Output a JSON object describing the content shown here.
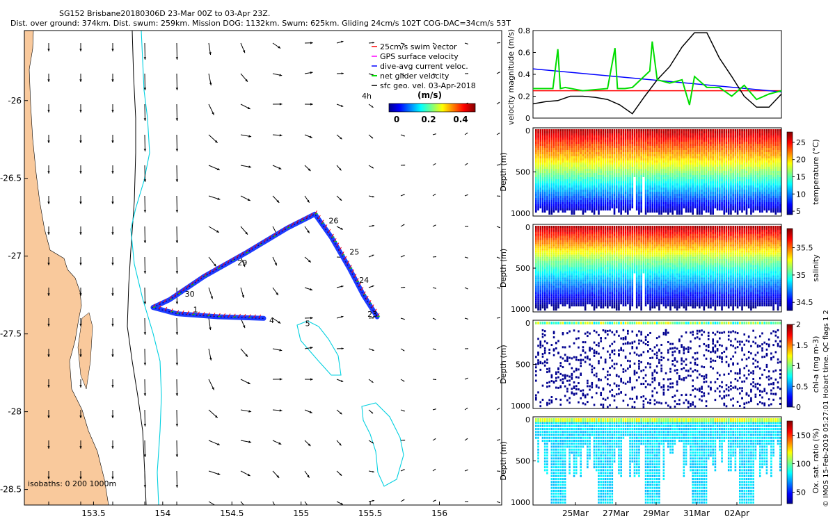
{
  "header": {
    "line1": "SG152 Brisbane20180306D 23-Mar 00Z to 03-Apr 23Z.",
    "line2": "Dist. over ground: 374km. Dist. swum: 259km. Mission DOG: 1132km. Swum: 625km. Gliding 24cm/s 102T COG-DAC=34cm/s 53T"
  },
  "side_label": "© IMOS 15-Feb-2019 05:27:01 Hobart time. QC flags 1  2",
  "colors": {
    "land": "#f9c99c",
    "swim_vector": "#ff0000",
    "gps_vel": "#ff00ff",
    "dac": "#0000ff",
    "net_vel": "#00dd00",
    "geo_vel": "#000000",
    "isobath_0": "#000000",
    "isobath_200": "#00d0e0",
    "track": "#1e3cff"
  },
  "chart_data": [
    {
      "id": "map",
      "type": "scatter",
      "title": "SG152 Brisbane20180306D 23-Mar 00Z to 03-Apr 23Z.",
      "xlim": [
        153.0,
        156.45
      ],
      "ylim": [
        -28.6,
        -25.55
      ],
      "xticks": [
        153.5,
        154,
        154.5,
        155,
        155.5,
        156
      ],
      "yticks": [
        -26,
        -26.5,
        -27,
        -27.5,
        -28,
        -28.5
      ],
      "legend": [
        "25cm/s swim vector",
        "GPS surface velocity",
        "dive-avg current veloc.",
        "net glider velocity",
        "sfc geo. vel. 03-Apr-2018"
      ],
      "speed_label": "4h",
      "colorbar": {
        "label": "(m/s)",
        "ticks": [
          "0",
          "0.2",
          "0.4"
        ]
      },
      "isobath_label": "isobaths: 0   200   1000m",
      "day_labels": [
        {
          "text": "23",
          "lon": 155.48,
          "lat": -27.39
        },
        {
          "text": "24",
          "lon": 155.42,
          "lat": -27.17
        },
        {
          "text": "25",
          "lon": 155.35,
          "lat": -26.99
        },
        {
          "text": "26",
          "lon": 155.2,
          "lat": -26.79
        },
        {
          "text": "29",
          "lon": 154.54,
          "lat": -27.06
        },
        {
          "text": "30",
          "lon": 154.16,
          "lat": -27.26
        },
        {
          "text": "1",
          "lon": 154.22,
          "lat": -27.36
        },
        {
          "text": "4",
          "lon": 154.77,
          "lat": -27.43
        },
        {
          "text": "5",
          "lon": 155.03,
          "lat": -27.45
        }
      ],
      "track": [
        [
          155.55,
          -27.39
        ],
        [
          155.45,
          -27.25
        ],
        [
          155.35,
          -27.08
        ],
        [
          155.22,
          -26.88
        ],
        [
          155.1,
          -26.73
        ],
        [
          154.9,
          -26.82
        ],
        [
          154.6,
          -26.98
        ],
        [
          154.3,
          -27.13
        ],
        [
          154.05,
          -27.28
        ],
        [
          153.93,
          -27.33
        ],
        [
          154.1,
          -27.37
        ],
        [
          154.4,
          -27.39
        ],
        [
          154.73,
          -27.4
        ]
      ]
    },
    {
      "id": "velocity",
      "type": "line",
      "ylabel": "velocity magnitude (m/s)",
      "ylim": [
        0,
        0.8
      ],
      "yticks": [
        "0",
        "0.2",
        "0.4",
        "0.6",
        "0.8"
      ],
      "series": [
        {
          "name": "red constant",
          "color": "#ff0000",
          "x": [
            0,
            1
          ],
          "values": [
            0.25,
            0.25
          ]
        },
        {
          "name": "blue trend",
          "color": "#0000ff",
          "x": [
            0,
            1
          ],
          "values": [
            0.45,
            0.24
          ]
        },
        {
          "name": "black",
          "color": "#000000",
          "x": [
            0,
            0.05,
            0.1,
            0.15,
            0.2,
            0.25,
            0.3,
            0.35,
            0.4,
            0.45,
            0.5,
            0.55,
            0.6,
            0.65,
            0.7,
            0.75,
            0.8,
            0.85,
            0.9,
            0.95,
            1
          ],
          "values": [
            0.13,
            0.15,
            0.16,
            0.2,
            0.2,
            0.19,
            0.17,
            0.12,
            0.04,
            0.2,
            0.35,
            0.47,
            0.65,
            0.78,
            0.78,
            0.55,
            0.38,
            0.2,
            0.1,
            0.1,
            0.22
          ]
        },
        {
          "name": "green",
          "color": "#00dd00",
          "x": [
            0,
            0.08,
            0.1,
            0.11,
            0.13,
            0.2,
            0.3,
            0.33,
            0.34,
            0.37,
            0.4,
            0.47,
            0.48,
            0.5,
            0.55,
            0.6,
            0.63,
            0.65,
            0.7,
            0.75,
            0.8,
            0.85,
            0.9,
            0.95,
            1
          ],
          "values": [
            0.27,
            0.27,
            0.63,
            0.27,
            0.28,
            0.25,
            0.27,
            0.64,
            0.27,
            0.27,
            0.28,
            0.43,
            0.7,
            0.35,
            0.32,
            0.35,
            0.12,
            0.38,
            0.28,
            0.28,
            0.2,
            0.3,
            0.17,
            0.22,
            0.25
          ]
        }
      ]
    },
    {
      "id": "temperature",
      "type": "heatmap",
      "ylabel": "Depth (m)",
      "yticks": [
        "0",
        "500",
        "1000"
      ],
      "colorbar": {
        "label": "temperature (°C)",
        "range": [
          4,
          28
        ],
        "ticks": [
          "5",
          "10",
          "15",
          "20",
          "25"
        ]
      }
    },
    {
      "id": "salinity",
      "type": "heatmap",
      "ylabel": "Depth (m)",
      "yticks": [
        "0",
        "500",
        "1000"
      ],
      "colorbar": {
        "label": "salinity",
        "range": [
          34.35,
          35.85
        ],
        "ticks": [
          "34.5",
          "35",
          "35.5"
        ]
      }
    },
    {
      "id": "chla",
      "type": "scatter",
      "ylabel": "Depth (m)",
      "yticks": [
        "0",
        "500",
        "1000"
      ],
      "colorbar": {
        "label": "chl-a (mg m-3)",
        "range": [
          0,
          2
        ],
        "ticks": [
          "0",
          "0.5",
          "1",
          "1.5",
          "2"
        ]
      }
    },
    {
      "id": "oxygen",
      "type": "scatter",
      "ylabel": "Depth (m)",
      "yticks": [
        "0",
        "500",
        "1000"
      ],
      "xticks": [
        "25Mar",
        "27Mar",
        "29Mar",
        "31Mar",
        "02Apr"
      ],
      "colorbar": {
        "label": "Ox. sat. ratio (%)",
        "range": [
          30,
          175
        ],
        "ticks": [
          "50",
          "100",
          "150"
        ]
      }
    }
  ]
}
